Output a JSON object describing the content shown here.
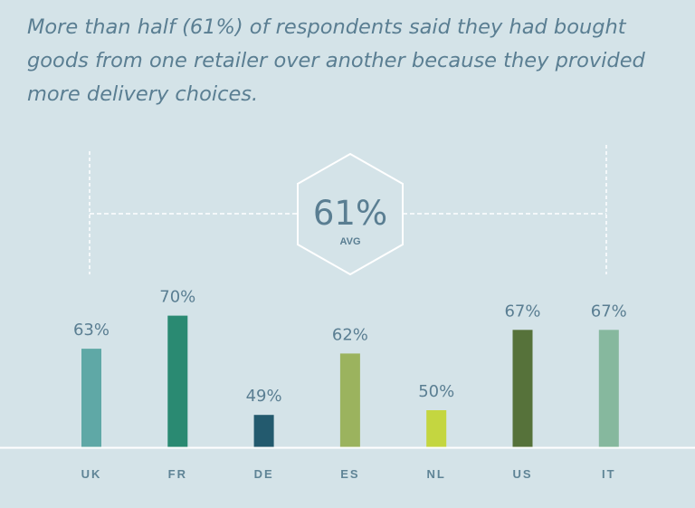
{
  "headline": "More than half (61%) of respondents said they had bought goods from one retailer over another because they provided more delivery choices.",
  "chart_data": {
    "type": "bar",
    "categories": [
      "UK",
      "FR",
      "DE",
      "ES",
      "NL",
      "US",
      "IT"
    ],
    "values": [
      63,
      70,
      49,
      62,
      50,
      67,
      67
    ],
    "value_labels": [
      "63%",
      "70%",
      "49%",
      "62%",
      "50%",
      "67%",
      "67%"
    ],
    "bar_colors": [
      "#5fa8a6",
      "#2a8a72",
      "#235a6e",
      "#9bb35e",
      "#c4d640",
      "#56723a",
      "#86b89e"
    ],
    "average": {
      "value": 61,
      "label": "61%",
      "caption": "AVG"
    },
    "ylim": [
      0,
      100
    ],
    "grid": false,
    "legend": "none",
    "title": "",
    "xlabel": "",
    "ylabel": ""
  },
  "colors": {
    "background": "#d4e3e8",
    "text": "#5a7e92",
    "category_text": "#5f8496",
    "guide_lines": "#ffffff"
  }
}
